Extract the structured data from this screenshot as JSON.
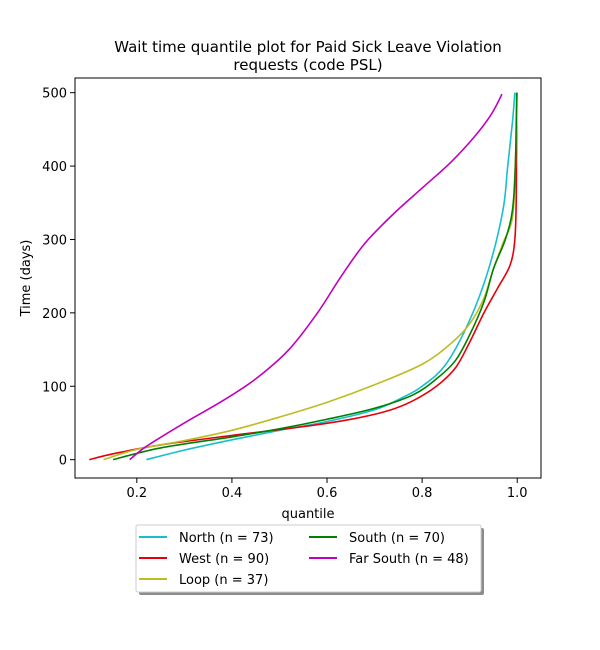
{
  "chart_data": {
    "type": "line",
    "title_lines": [
      "Wait time quantile plot for Paid Sick Leave Violation",
      "requests (code PSL)"
    ],
    "xlabel": "quantile",
    "ylabel": "Time (days)",
    "xlim": [
      0.07,
      1.05
    ],
    "ylim": [
      -25,
      520
    ],
    "xticks": [
      0.2,
      0.4,
      0.6,
      0.8,
      1.0
    ],
    "xtick_labels": [
      "0.2",
      "0.4",
      "0.6",
      "0.8",
      "1.0"
    ],
    "yticks": [
      0,
      100,
      200,
      300,
      400,
      500
    ],
    "ytick_labels": [
      "0",
      "100",
      "200",
      "300",
      "400",
      "500"
    ],
    "grid": false,
    "legend": {
      "position": "below-plot",
      "columns": 2
    },
    "series": [
      {
        "name": "North",
        "label": "North (n = 73)",
        "color": "#17becf",
        "points": [
          [
            0.22,
            0
          ],
          [
            0.3,
            13
          ],
          [
            0.4,
            27
          ],
          [
            0.5,
            40
          ],
          [
            0.6,
            52
          ],
          [
            0.7,
            68
          ],
          [
            0.76,
            85
          ],
          [
            0.8,
            100
          ],
          [
            0.85,
            130
          ],
          [
            0.9,
            190
          ],
          [
            0.94,
            260
          ],
          [
            0.97,
            340
          ],
          [
            0.98,
            400
          ],
          [
            0.99,
            460
          ],
          [
            0.995,
            500
          ]
        ]
      },
      {
        "name": "West",
        "label": "West (n = 90)",
        "color": "#e6000b",
        "points": [
          [
            0.1,
            0
          ],
          [
            0.15,
            8
          ],
          [
            0.25,
            20
          ],
          [
            0.4,
            33
          ],
          [
            0.55,
            45
          ],
          [
            0.65,
            55
          ],
          [
            0.73,
            67
          ],
          [
            0.78,
            80
          ],
          [
            0.83,
            100
          ],
          [
            0.87,
            125
          ],
          [
            0.9,
            160
          ],
          [
            0.93,
            200
          ],
          [
            0.96,
            235
          ],
          [
            0.985,
            265
          ],
          [
            0.995,
            300
          ],
          [
            0.998,
            360
          ],
          [
            0.999,
            500
          ]
        ]
      },
      {
        "name": "Loop",
        "label": "Loop (n = 37)",
        "color": "#bcbd22",
        "points": [
          [
            0.13,
            0
          ],
          [
            0.2,
            14
          ],
          [
            0.3,
            26
          ],
          [
            0.4,
            40
          ],
          [
            0.5,
            58
          ],
          [
            0.6,
            78
          ],
          [
            0.7,
            102
          ],
          [
            0.8,
            130
          ],
          [
            0.86,
            158
          ],
          [
            0.9,
            185
          ],
          [
            0.93,
            220
          ],
          [
            0.95,
            260
          ],
          [
            0.97,
            295
          ],
          [
            0.99,
            330
          ],
          [
            0.996,
            400
          ],
          [
            1.0,
            500
          ]
        ]
      },
      {
        "name": "South",
        "label": "South (n = 70)",
        "color": "#008000",
        "points": [
          [
            0.15,
            0
          ],
          [
            0.25,
            16
          ],
          [
            0.4,
            31
          ],
          [
            0.5,
            42
          ],
          [
            0.6,
            55
          ],
          [
            0.7,
            70
          ],
          [
            0.78,
            88
          ],
          [
            0.83,
            110
          ],
          [
            0.87,
            135
          ],
          [
            0.9,
            170
          ],
          [
            0.93,
            215
          ],
          [
            0.95,
            260
          ],
          [
            0.975,
            300
          ],
          [
            0.99,
            340
          ],
          [
            0.996,
            400
          ],
          [
            0.999,
            500
          ]
        ]
      },
      {
        "name": "Far South",
        "label": "Far South (n = 48)",
        "color": "#bf00bf",
        "points": [
          [
            0.185,
            0
          ],
          [
            0.22,
            18
          ],
          [
            0.3,
            50
          ],
          [
            0.38,
            80
          ],
          [
            0.45,
            110
          ],
          [
            0.52,
            150
          ],
          [
            0.58,
            200
          ],
          [
            0.63,
            250
          ],
          [
            0.68,
            295
          ],
          [
            0.74,
            335
          ],
          [
            0.8,
            370
          ],
          [
            0.86,
            405
          ],
          [
            0.91,
            440
          ],
          [
            0.945,
            470
          ],
          [
            0.968,
            498
          ]
        ]
      }
    ]
  }
}
